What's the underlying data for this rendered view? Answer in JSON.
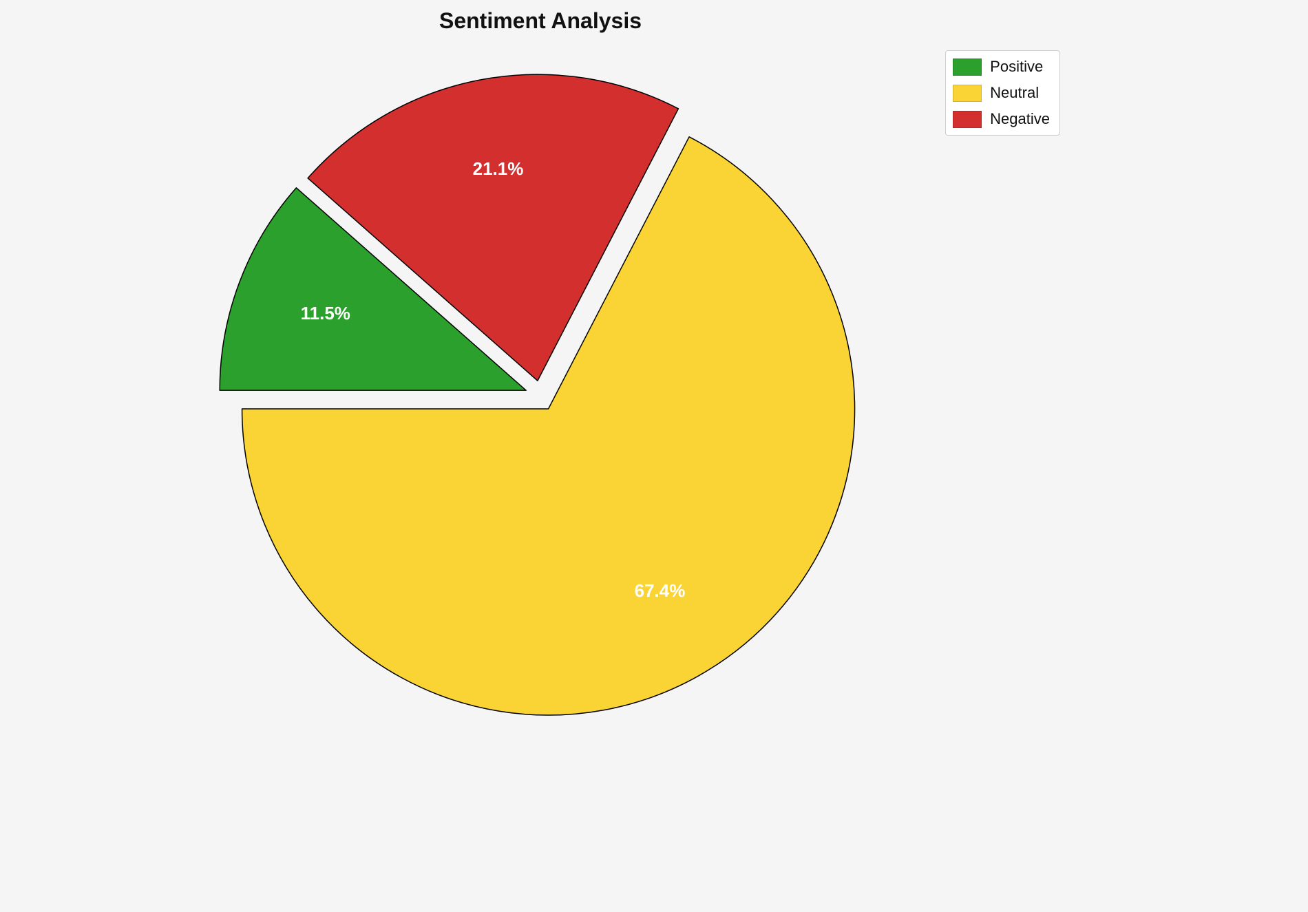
{
  "chart_data": {
    "type": "pie",
    "title": "Sentiment Analysis",
    "slices": [
      {
        "label": "Positive",
        "value": 11.5,
        "pct_label": "11.5%",
        "color": "#2ca02c"
      },
      {
        "label": "Neutral",
        "value": 67.4,
        "pct_label": "67.4%",
        "color": "#FAD335"
      },
      {
        "label": "Negative",
        "value": 21.1,
        "pct_label": "21.1%",
        "color": "#D32F2F"
      }
    ],
    "legend": {
      "position": "top-right",
      "entries": [
        "Positive",
        "Neutral",
        "Negative"
      ]
    },
    "draw_order": [
      "Positive",
      "Negative",
      "Neutral"
    ],
    "start_angle": 180,
    "direction": "clockwise",
    "explode": 0.05,
    "pct_distance": 0.7,
    "pct_label_color": "#ffffff",
    "edge_color": "#000000",
    "background": "#f5f5f5"
  }
}
